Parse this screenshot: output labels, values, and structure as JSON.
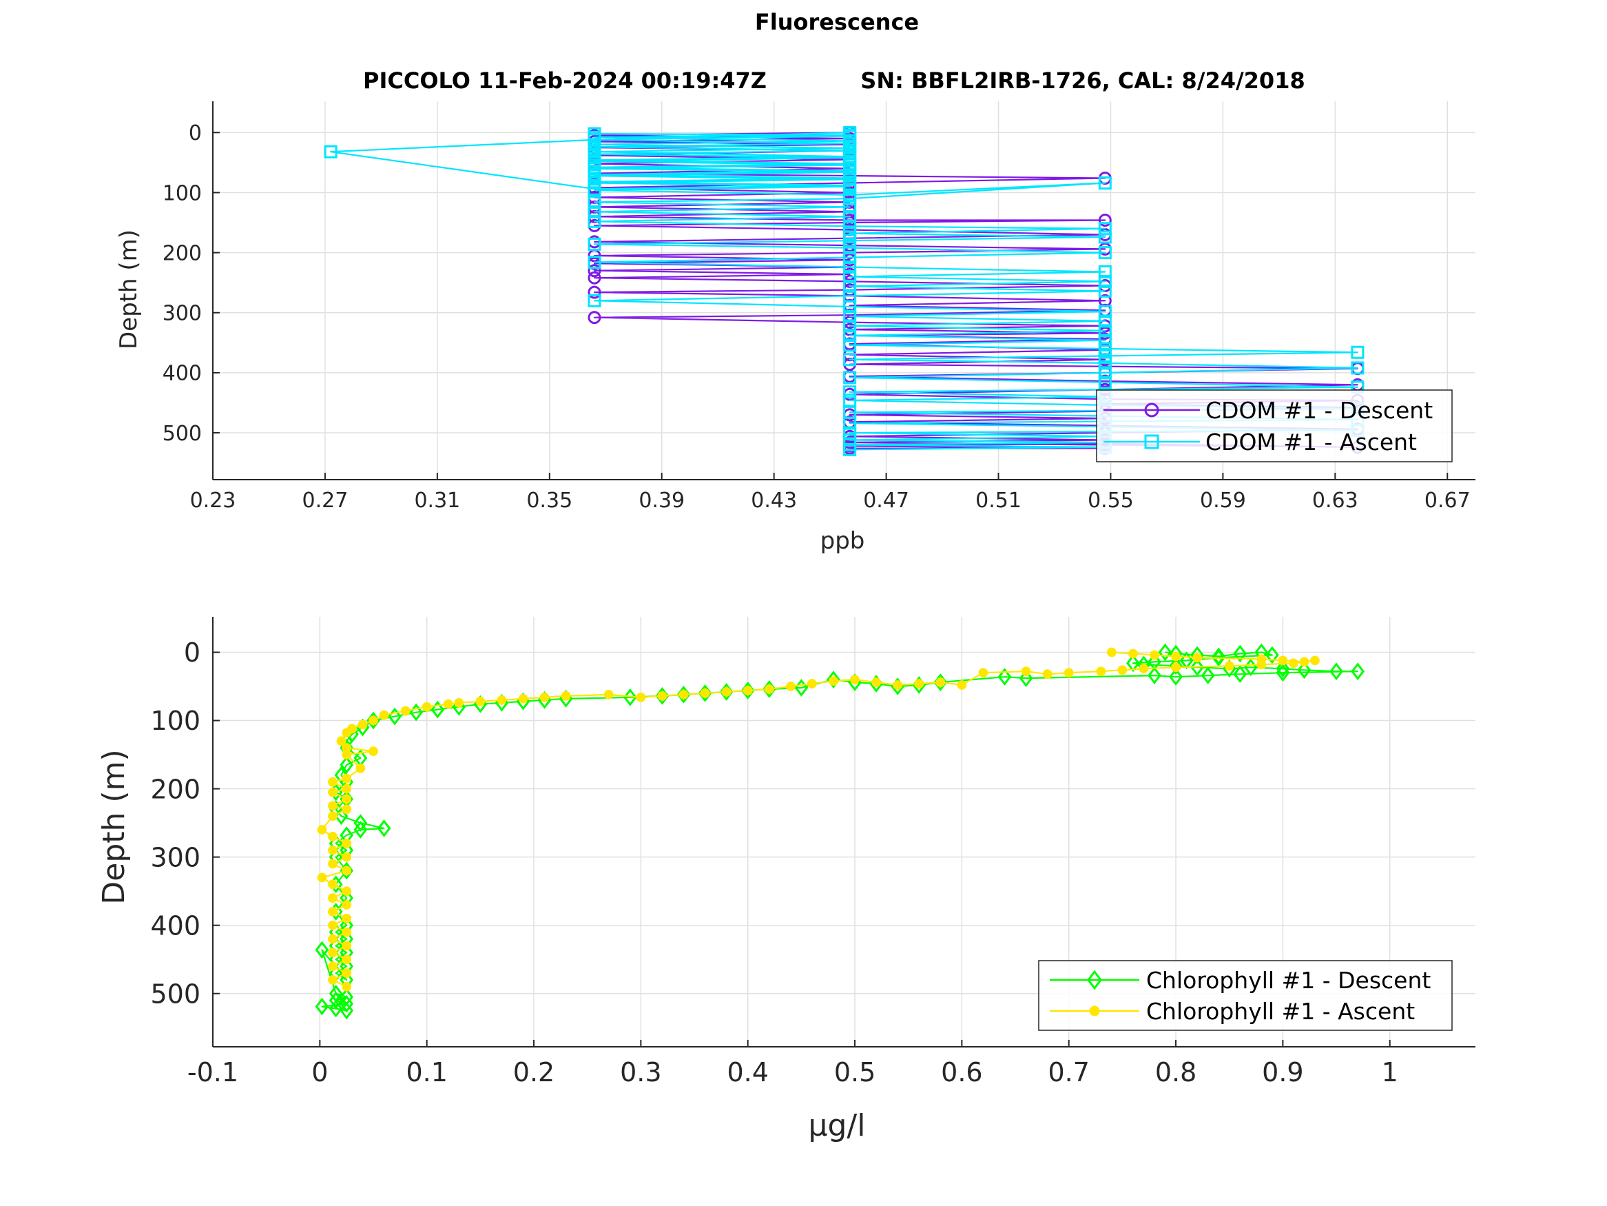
{
  "figure": {
    "title": "Fluorescence",
    "subtitle_left": "PICCOLO 11-Feb-2024 00:19:47Z",
    "subtitle_right": "SN: BBFL2IRB-1726, CAL: 8/24/2018"
  },
  "colors": {
    "cdom_descent": "#7f1ae6",
    "cdom_ascent": "#00e5ff",
    "chl_descent": "#00ff00",
    "chl_ascent": "#ffe600",
    "grid": "#e0e0e0",
    "axis": "#262626"
  },
  "chart_data": [
    {
      "type": "line",
      "xlabel": "ppb",
      "ylabel": "Depth (m)",
      "xlim": [
        0.23,
        0.68
      ],
      "ylim": [
        -52,
        578
      ],
      "y_reversed": true,
      "grid": true,
      "xticks": [
        0.23,
        0.27,
        0.31,
        0.35,
        0.39,
        0.43,
        0.47,
        0.51,
        0.55,
        0.59,
        0.63,
        0.67
      ],
      "xtick_labels": [
        "0.23",
        "0.27",
        "0.31",
        "0.35",
        "0.39",
        "0.43",
        "0.47",
        "0.51",
        "0.55",
        "0.59",
        "0.63",
        "0.67"
      ],
      "yticks": [
        0,
        100,
        200,
        300,
        400,
        500
      ],
      "ytick_labels": [
        "0",
        "100",
        "200",
        "300",
        "400",
        "500"
      ],
      "legend_location": "bottom-right",
      "series": [
        {
          "name": "CDOM #1 - Descent",
          "marker": "circle",
          "x": [
            0.457,
            0.366,
            0.457,
            0.366,
            0.457,
            0.366,
            0.457,
            0.366,
            0.457,
            0.366,
            0.457,
            0.366,
            0.548,
            0.457,
            0.366,
            0.457,
            0.366,
            0.457,
            0.366,
            0.457,
            0.366,
            0.457,
            0.548,
            0.457,
            0.366,
            0.457,
            0.548,
            0.457,
            0.366,
            0.457,
            0.548,
            0.457,
            0.366,
            0.457,
            0.366,
            0.457,
            0.366,
            0.457,
            0.366,
            0.457,
            0.548,
            0.457,
            0.366,
            0.457,
            0.548,
            0.457,
            0.548,
            0.457,
            0.366,
            0.457,
            0.548,
            0.457,
            0.548,
            0.457,
            0.548,
            0.457,
            0.548,
            0.457,
            0.548,
            0.457,
            0.638,
            0.548,
            0.457,
            0.548,
            0.638,
            0.548,
            0.457,
            0.548,
            0.638,
            0.548,
            0.638,
            0.548,
            0.457,
            0.548,
            0.457,
            0.548,
            0.638,
            0.548,
            0.457,
            0.548,
            0.457,
            0.548,
            0.638,
            0.548,
            0.457,
            0.548,
            0.457
          ],
          "y": [
            0,
            5,
            10,
            15,
            20,
            25,
            30,
            38,
            45,
            52,
            60,
            68,
            76,
            84,
            92,
            100,
            108,
            116,
            124,
            132,
            140,
            146,
            146,
            150,
            155,
            162,
            170,
            176,
            182,
            188,
            194,
            200,
            205,
            212,
            218,
            224,
            230,
            236,
            242,
            248,
            255,
            262,
            266,
            272,
            280,
            288,
            296,
            304,
            308,
            316,
            322,
            328,
            334,
            338,
            344,
            352,
            362,
            370,
            378,
            386,
            393,
            400,
            406,
            414,
            420,
            428,
            436,
            444,
            446,
            452,
            458,
            464,
            470,
            476,
            482,
            488,
            494,
            500,
            506,
            512,
            516,
            520,
            524,
            518,
            522,
            526,
            526
          ]
        },
        {
          "name": "CDOM #1 - Ascent",
          "marker": "square",
          "x": [
            0.457,
            0.548,
            0.457,
            0.548,
            0.457,
            0.548,
            0.457,
            0.638,
            0.548,
            0.457,
            0.638,
            0.548,
            0.457,
            0.638,
            0.548,
            0.457,
            0.548,
            0.457,
            0.638,
            0.548,
            0.457,
            0.548,
            0.638,
            0.548,
            0.457,
            0.548,
            0.638,
            0.548,
            0.457,
            0.548,
            0.457,
            0.548,
            0.457,
            0.548,
            0.457,
            0.548,
            0.457,
            0.366,
            0.457,
            0.548,
            0.457,
            0.548,
            0.457,
            0.548,
            0.457,
            0.366,
            0.457,
            0.548,
            0.457,
            0.366,
            0.457,
            0.548,
            0.457,
            0.548,
            0.457,
            0.366,
            0.457,
            0.366,
            0.457,
            0.366,
            0.457,
            0.548,
            0.457,
            0.366,
            0.457,
            0.366,
            0.457,
            0.366,
            0.457,
            0.366,
            0.457,
            0.366,
            0.457,
            0.366,
            0.457,
            0.366,
            0.457,
            0.366,
            0.457,
            0.366,
            0.457,
            0.366,
            0.457,
            0.366,
            0.457,
            0.366,
            0.457,
            0.366,
            0.457,
            0.366,
            0.457,
            0.366,
            0.457,
            0.366,
            0.457,
            0.366,
            0.272,
            0.366,
            0.457
          ],
          "y": [
            528,
            524,
            520,
            516,
            512,
            506,
            500,
            496,
            490,
            484,
            478,
            472,
            466,
            460,
            454,
            446,
            440,
            432,
            424,
            416,
            408,
            400,
            392,
            384,
            378,
            372,
            366,
            360,
            354,
            346,
            338,
            330,
            322,
            314,
            306,
            298,
            290,
            280,
            272,
            264,
            256,
            248,
            240,
            232,
            224,
            216,
            208,
            200,
            192,
            186,
            180,
            174,
            168,
            160,
            156,
            148,
            140,
            132,
            124,
            116,
            110,
            84,
            104,
            96,
            90,
            84,
            78,
            72,
            66,
            60,
            54,
            48,
            42,
            36,
            30,
            24,
            18,
            12,
            6,
            2,
            4,
            8,
            14,
            20,
            26,
            32,
            40,
            46,
            52,
            58,
            64,
            70,
            76,
            82,
            88,
            94,
            32,
            12,
            0
          ]
        }
      ]
    },
    {
      "type": "line",
      "xlabel": "μg/l",
      "ylabel": "Depth (m)",
      "xlim": [
        -0.1,
        1.08
      ],
      "ylim": [
        -52,
        578
      ],
      "y_reversed": true,
      "grid": true,
      "xticks": [
        -0.1,
        0,
        0.1,
        0.2,
        0.3,
        0.4,
        0.5,
        0.6,
        0.7,
        0.8,
        0.9,
        1
      ],
      "xtick_labels": [
        "-0.1",
        "0",
        "0.1",
        "0.2",
        "0.3",
        "0.4",
        "0.5",
        "0.6",
        "0.7",
        "0.8",
        "0.9",
        "1"
      ],
      "yticks": [
        0,
        100,
        200,
        300,
        400,
        500
      ],
      "ytick_labels": [
        "0",
        "100",
        "200",
        "300",
        "400",
        "500"
      ],
      "legend_location": "bottom-right",
      "series": [
        {
          "name": "Chlorophyll #1 - Descent",
          "marker": "diamond",
          "x": [
            0.79,
            0.8,
            0.82,
            0.84,
            0.86,
            0.88,
            0.89,
            0.84,
            0.81,
            0.78,
            0.76,
            0.77,
            0.8,
            0.82,
            0.85,
            0.87,
            0.9,
            0.92,
            0.95,
            0.97,
            0.9,
            0.86,
            0.83,
            0.8,
            0.78,
            0.66,
            0.64,
            0.58,
            0.56,
            0.54,
            0.52,
            0.5,
            0.48,
            0.45,
            0.42,
            0.4,
            0.38,
            0.36,
            0.34,
            0.32,
            0.29,
            0.23,
            0.21,
            0.19,
            0.17,
            0.15,
            0.13,
            0.11,
            0.09,
            0.07,
            0.05,
            0.04,
            0.03,
            0.025,
            0.025,
            0.038,
            0.025,
            0.02,
            0.025,
            0.015,
            0.025,
            0.015,
            0.02,
            0.038,
            0.06,
            0.038,
            0.025,
            0.015,
            0.025,
            0.015,
            0.025,
            0.015,
            0.025,
            0.015,
            0.025,
            0.015,
            0.025,
            0.015,
            0.025,
            0.015,
            0.025,
            0.015,
            0.025,
            0.002,
            0.015,
            0.025,
            0.015,
            0.025,
            0.002,
            0.015,
            0.025
          ],
          "y": [
            0,
            2,
            4,
            6,
            2,
            0,
            4,
            8,
            12,
            14,
            16,
            18,
            20,
            22,
            24,
            22,
            24,
            26,
            28,
            28,
            30,
            32,
            34,
            36,
            34,
            38,
            36,
            44,
            48,
            50,
            46,
            44,
            40,
            52,
            54,
            56,
            58,
            60,
            62,
            64,
            66,
            68,
            70,
            72,
            74,
            76,
            80,
            84,
            88,
            94,
            100,
            110,
            120,
            130,
            140,
            155,
            165,
            180,
            190,
            205,
            215,
            230,
            240,
            250,
            258,
            260,
            268,
            280,
            290,
            300,
            320,
            340,
            360,
            380,
            400,
            410,
            420,
            430,
            440,
            450,
            460,
            470,
            480,
            436,
            500,
            505,
            510,
            515,
            519,
            522,
            525
          ]
        },
        {
          "name": "Chlorophyll #1 - Ascent",
          "marker": "hexagram",
          "x": [
            0.74,
            0.76,
            0.78,
            0.8,
            0.82,
            0.88,
            0.9,
            0.92,
            0.93,
            0.91,
            0.88,
            0.85,
            0.8,
            0.77,
            0.75,
            0.73,
            0.7,
            0.68,
            0.66,
            0.62,
            0.6,
            0.58,
            0.56,
            0.54,
            0.52,
            0.5,
            0.48,
            0.46,
            0.44,
            0.42,
            0.4,
            0.38,
            0.36,
            0.34,
            0.32,
            0.3,
            0.27,
            0.23,
            0.21,
            0.19,
            0.17,
            0.15,
            0.13,
            0.12,
            0.1,
            0.08,
            0.06,
            0.05,
            0.04,
            0.03,
            0.025,
            0.02,
            0.025,
            0.05,
            0.025,
            0.038,
            0.025,
            0.012,
            0.025,
            0.012,
            0.025,
            0.012,
            0.025,
            0.012,
            0.002,
            0.012,
            0.025,
            0.012,
            0.025,
            0.012,
            0.025,
            0.002,
            0.012,
            0.025,
            0.012,
            0.025,
            0.012,
            0.025,
            0.012,
            0.025,
            0.012,
            0.025,
            0.012,
            0.025,
            0.012,
            0.025,
            0.012,
            0.025
          ],
          "y": [
            0,
            2,
            4,
            6,
            8,
            10,
            12,
            14,
            12,
            16,
            18,
            20,
            22,
            24,
            26,
            28,
            30,
            32,
            28,
            30,
            48,
            44,
            46,
            48,
            44,
            40,
            42,
            46,
            50,
            54,
            56,
            58,
            60,
            62,
            64,
            66,
            62,
            64,
            66,
            68,
            70,
            72,
            74,
            76,
            80,
            86,
            92,
            100,
            106,
            112,
            118,
            130,
            140,
            145,
            150,
            170,
            185,
            190,
            200,
            205,
            215,
            225,
            230,
            240,
            260,
            270,
            280,
            290,
            300,
            310,
            320,
            330,
            340,
            350,
            360,
            370,
            380,
            390,
            400,
            410,
            420,
            430,
            440,
            450,
            460,
            470,
            480,
            490
          ]
        }
      ]
    }
  ]
}
